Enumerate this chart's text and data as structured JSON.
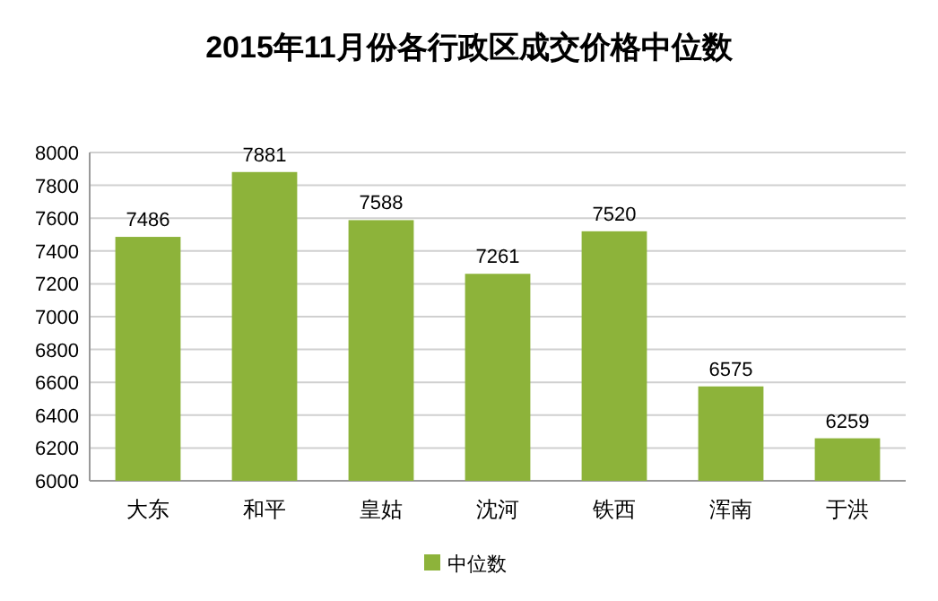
{
  "chart_data": {
    "type": "bar",
    "title": "2015年11月份各行政区成交价格中位数",
    "categories": [
      "大东",
      "和平",
      "皇姑",
      "沈河",
      "铁西",
      "浑南",
      "于洪"
    ],
    "series": [
      {
        "name": "中位数",
        "color": "#8db33a",
        "values": [
          7486,
          7881,
          7588,
          7261,
          7520,
          6575,
          6259
        ]
      }
    ],
    "ylim": [
      6000,
      8000
    ],
    "yticks": [
      6000,
      6200,
      6400,
      6600,
      6800,
      7000,
      7200,
      7400,
      7600,
      7800,
      8000
    ],
    "grid": "y",
    "legend": "bottom",
    "data_labels": true
  }
}
